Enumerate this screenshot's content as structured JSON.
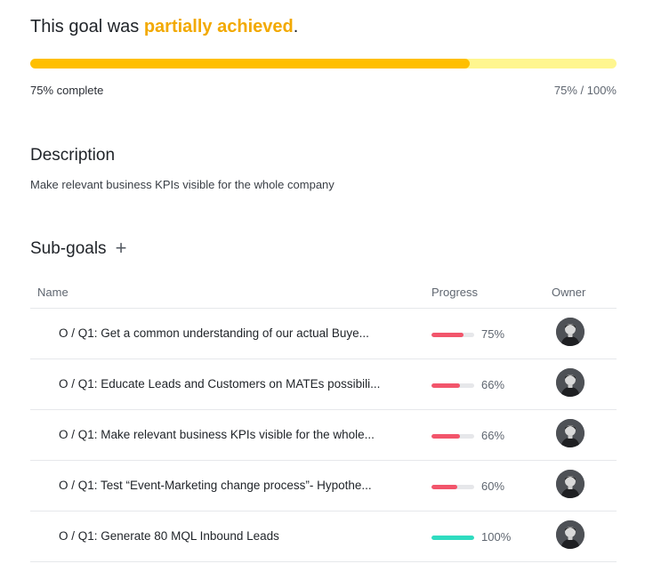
{
  "status": {
    "prefix": "This goal was ",
    "highlight": "partially achieved",
    "suffix": "."
  },
  "progress": {
    "fraction": 0.75,
    "complete_label": "75% complete",
    "ratio_label": "75% / 100%",
    "fill_color": "#ffbf00",
    "track_color": "#fff68f"
  },
  "description": {
    "heading": "Description",
    "text": "Make relevant business KPIs visible for the whole company"
  },
  "subgoals": {
    "heading": "Sub-goals",
    "add_icon": "plus-icon",
    "add_glyph": "+",
    "columns": {
      "name": "Name",
      "progress": "Progress",
      "owner": "Owner"
    },
    "rows": [
      {
        "name": "O / Q1: Get a common understanding of our actual Buye...",
        "progress": 0.75,
        "pct": "75%",
        "color": "#f2556b",
        "owner_icon": "avatar"
      },
      {
        "name": "O / Q1: Educate Leads and Customers on MATEs possibili...",
        "progress": 0.66,
        "pct": "66%",
        "color": "#f2556b",
        "owner_icon": "avatar"
      },
      {
        "name": "O / Q1: Make relevant business KPIs visible for the whole...",
        "progress": 0.66,
        "pct": "66%",
        "color": "#f2556b",
        "owner_icon": "avatar"
      },
      {
        "name": "O / Q1: Test “Event-Marketing change process”- Hypothe...",
        "progress": 0.6,
        "pct": "60%",
        "color": "#f2556b",
        "owner_icon": "avatar"
      },
      {
        "name": "O / Q1: Generate 80 MQL Inbound Leads",
        "progress": 1.0,
        "pct": "100%",
        "color": "#2fdcc0",
        "owner_icon": "avatar"
      }
    ]
  }
}
